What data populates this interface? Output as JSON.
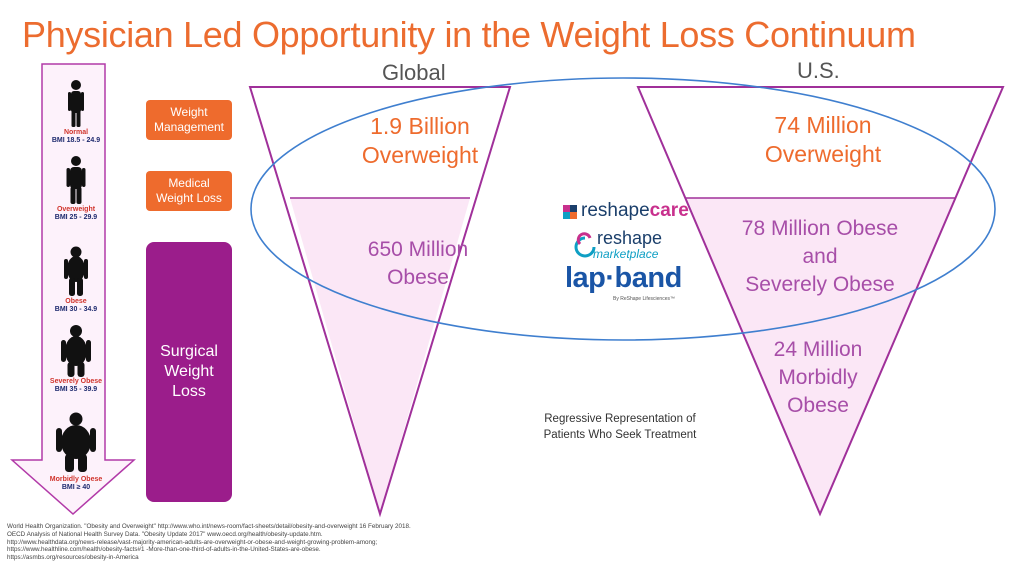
{
  "title": "Physician Led Opportunity in the Weight Loss Continuum",
  "bmi_scale": [
    {
      "category": "Normal",
      "bmi": "BMI 18.5 - 24.9"
    },
    {
      "category": "Overweight",
      "bmi": "BMI 25 - 29.9"
    },
    {
      "category": "Obese",
      "bmi": "BMI 30 - 34.9"
    },
    {
      "category": "Severely Obese",
      "bmi": "BMI 35 - 39.9"
    },
    {
      "category": "Morbidly Obese",
      "bmi": "BMI ≥ 40"
    }
  ],
  "stages": {
    "weight_management": [
      "Weight",
      "Management"
    ],
    "medical_weight_loss": [
      "Medical",
      "Weight Loss"
    ],
    "surgical_weight_loss": [
      "Surgical",
      "Weight",
      "Loss"
    ]
  },
  "global": {
    "header": "Global",
    "overweight": [
      "1.9 Billion",
      "Overweight"
    ],
    "obese": [
      "650 Million",
      "Obese"
    ]
  },
  "us": {
    "header": "U.S.",
    "overweight": [
      "74 Million",
      "Overweight"
    ],
    "obese": [
      "78 Million Obese",
      "and",
      "Severely Obese"
    ],
    "morbid": [
      "24 Million",
      "Morbidly",
      "Obese"
    ]
  },
  "brands": {
    "reshape_care": [
      "reshape",
      "care"
    ],
    "reshape_marketplace": [
      "reshape",
      "marketplace"
    ],
    "lapband": "lap·band",
    "lapband_tagline": "By ReShape Lifesciences™"
  },
  "center_note": [
    "Regressive Representation of",
    "Patients Who Seek Treatment"
  ],
  "references": [
    "World Health Organization. \"Obesity and Overweight\" http://www.who.int/news-room/fact-sheets/detail/obesity-and-overweight 16 February 2018.",
    "OECD Analysis of National Health Survey Data. \"Obesity Update 2017\" www.oecd.org/health/obesity-update.htm.",
    "http://www.healthdata.org/news-release/vast-majority-american-adults-are-overweight-or-obese-and-weight-growing-problem-among;",
    "https://www.healthline.com/health/obesity-facts#1 -More-than-one-third-of-adults-in-the-United-States-are-obese.",
    "https://asmbs.org/resources/obesity-in-America"
  ],
  "colors": {
    "title_orange": "#ec6c2f",
    "stage_orange": "#ee6b2d",
    "stage_purple": "#9b1d8b",
    "triangle_outline": "#a0309a",
    "triangle_fill": "#fbe7f6",
    "ellipse_blue": "#3f7fcf"
  }
}
